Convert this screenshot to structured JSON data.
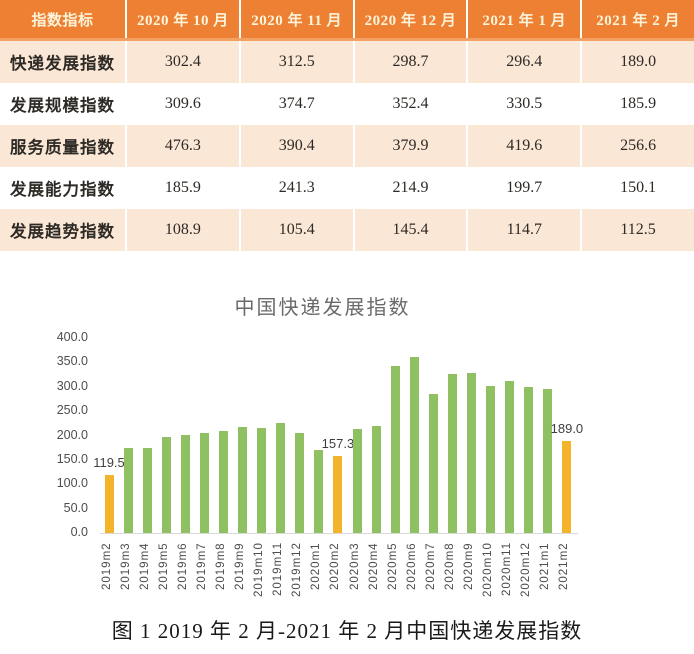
{
  "caption": "图 1 2019 年 2 月-2021 年 2 月中国快递发展指数",
  "chart_data": [
    {
      "type": "table",
      "columns": [
        "指数指标",
        "2020 年 10 月",
        "2020 年 11 月",
        "2020 年 12 月",
        "2021 年 1 月",
        "2021 年 2 月"
      ],
      "rows": [
        {
          "label": "快递发展指数",
          "values": [
            "302.4",
            "312.5",
            "298.7",
            "296.4",
            "189.0"
          ]
        },
        {
          "label": "发展规模指数",
          "values": [
            "309.6",
            "374.7",
            "352.4",
            "330.5",
            "185.9"
          ]
        },
        {
          "label": "服务质量指数",
          "values": [
            "476.3",
            "390.4",
            "379.9",
            "419.6",
            "256.6"
          ]
        },
        {
          "label": "发展能力指数",
          "values": [
            "185.9",
            "241.3",
            "214.9",
            "199.7",
            "150.1"
          ]
        },
        {
          "label": "发展趋势指数",
          "values": [
            "108.9",
            "105.4",
            "145.4",
            "114.7",
            "112.5"
          ]
        }
      ]
    },
    {
      "type": "bar",
      "title": "中国快递发展指数",
      "categories": [
        "2019m2",
        "2019m3",
        "2019m4",
        "2019m5",
        "2019m6",
        "2019m7",
        "2019m8",
        "2019m9",
        "2019m10",
        "2019m11",
        "2019m12",
        "2020m1",
        "2020m2",
        "2020m3",
        "2020m4",
        "2020m5",
        "2020m6",
        "2020m7",
        "2020m8",
        "2020m9",
        "2020m10",
        "2020m11",
        "2020m12",
        "2021m1",
        "2021m2"
      ],
      "values": [
        119.5,
        173.5,
        175.0,
        196.0,
        202.0,
        205.5,
        210.0,
        216.5,
        214.5,
        226.0,
        205.0,
        170.0,
        157.3,
        214.0,
        219.0,
        343.0,
        361.5,
        285.0,
        326.0,
        329.0,
        302.4,
        312.5,
        298.7,
        296.4,
        189.0
      ],
      "highlighted_categories": [
        "2019m2",
        "2020m2",
        "2021m2"
      ],
      "data_labels": {
        "2019m2": "119.5",
        "2020m2": "157.3",
        "2021m2": "189.0"
      },
      "xlabel": "",
      "ylabel": "",
      "ylim": [
        0,
        400
      ],
      "ytick_step": 50,
      "ytick_decimals": 1,
      "grid": false,
      "legend": false,
      "bar_color": "#8FC162",
      "highlight_color": "#F3B32B"
    }
  ],
  "colors": {
    "header_bg": "#ED8033",
    "header_bg_edge": "#F2A165",
    "header_text": "#FDF4DA",
    "row_alt_bg": "#FBE7D6",
    "row_bg": "#FFFFFF",
    "table_text": "#2E2A26",
    "axis_text": "#4D4D4D",
    "axis_line": "#D9D9D9",
    "chart_title_text": "#6A6A6A",
    "caption_text": "#1A1A1A"
  }
}
